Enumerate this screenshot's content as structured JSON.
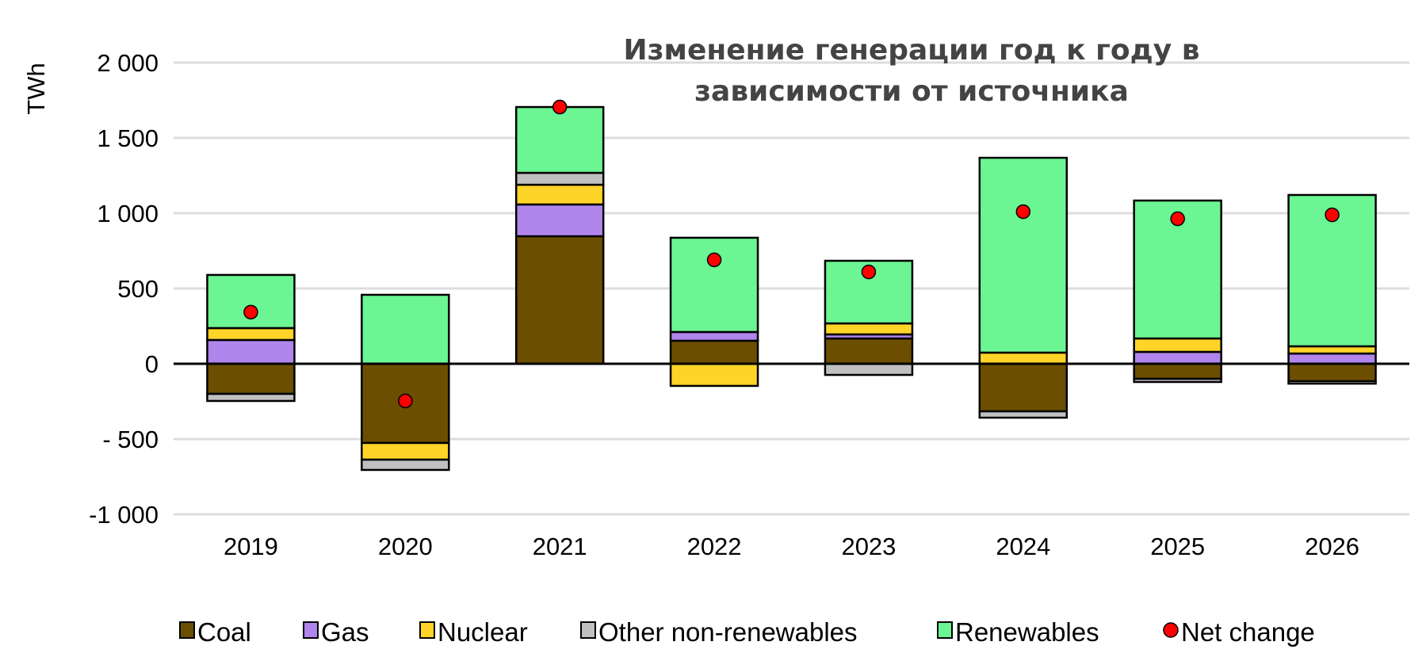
{
  "chart_data": {
    "type": "bar",
    "stacked": true,
    "title": [
      "Изменение генерации год к году в",
      "зависимости от источника"
    ],
    "xlabel": "",
    "ylabel": "TWh",
    "ylim": [
      -1000,
      2000
    ],
    "yticks": [
      2000,
      1500,
      1000,
      500,
      0,
      -500,
      -1000
    ],
    "ytick_labels": [
      "2 000",
      "1 500",
      "1 000",
      "500",
      "0",
      "- 500",
      "-1 000"
    ],
    "grid": true,
    "legend_position": "bottom",
    "categories": [
      "2019",
      "2020",
      "2021",
      "2022",
      "2023",
      "2024",
      "2025",
      "2026"
    ],
    "series": [
      {
        "name": "Coal",
        "color": "#6b4e00",
        "values": [
          -200,
          -526,
          847,
          153,
          168,
          -316,
          -100,
          -116
        ]
      },
      {
        "name": "Gas",
        "color": "#b085ec",
        "values": [
          158,
          0,
          211,
          58,
          27,
          0,
          79,
          68
        ]
      },
      {
        "name": "Nuclear",
        "color": "#ffd428",
        "values": [
          79,
          -111,
          131,
          -147,
          73,
          74,
          89,
          48
        ]
      },
      {
        "name": "Other non-renewables",
        "color": "#c0c0c0",
        "values": [
          -47,
          -68,
          79,
          0,
          -74,
          -42,
          -21,
          -16
        ]
      },
      {
        "name": "Renewables",
        "color": "#6cf593",
        "values": [
          353,
          458,
          437,
          626,
          416,
          1294,
          916,
          1005
        ]
      }
    ],
    "net_change": {
      "name": "Net change",
      "color": "#ff0000",
      "values": [
        343,
        -247,
        1705,
        690,
        610,
        1010,
        963,
        989
      ]
    }
  }
}
